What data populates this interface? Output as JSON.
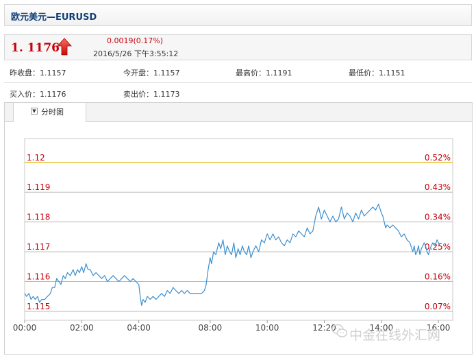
{
  "header": {
    "title": "欧元美元—EURUSD"
  },
  "quote": {
    "price": "1. 1176",
    "change": "0.0019(0.17%)",
    "datetime": "2016/5/26 下午3:55:12",
    "direction_icon": "up-arrow-icon",
    "up_color": "#c7000b"
  },
  "stats": {
    "prev_close": "昨收盘：1.1157",
    "open": "今开盘：1.1157",
    "high": "最高价：1.1191",
    "low": "最低价：1.1151",
    "bid": "买入价：1.1176",
    "ask": "卖出价：1.1173"
  },
  "tab": {
    "label": "分时图",
    "icon": "dropdown-icon"
  },
  "watermark": {
    "text": "中金在线外汇网",
    "icon": "wechat-icon"
  },
  "chart_data": {
    "type": "line",
    "y_tick_labels": [
      "1.12",
      "1.119",
      "1.118",
      "1.117",
      "1.116",
      "1.115"
    ],
    "y_ticks": [
      1.12,
      1.119,
      1.118,
      1.117,
      1.116,
      1.115
    ],
    "right_tick_labels": [
      "0.52%",
      "0.43%",
      "0.34%",
      "0.25%",
      "0.16%",
      "0.07%"
    ],
    "x_tick_labels": [
      "00:00",
      "02:00",
      "04:00",
      "08:00",
      "10:00",
      "12:20",
      "14:00",
      "16:00"
    ],
    "x_ticks_hours": [
      0,
      2,
      4,
      6.5,
      8.5,
      10.5,
      12.5,
      14.5
    ],
    "xlim": [
      0,
      15
    ],
    "ylim": [
      1.1147,
      1.1208
    ],
    "highlight_level": 1.12,
    "line_color": "#3a8fd0",
    "highlight_color": "#e5c53a",
    "label_color": "#c7000b",
    "points": [
      [
        0.0,
        1.1156
      ],
      [
        0.07,
        1.1155
      ],
      [
        0.15,
        1.1156
      ],
      [
        0.22,
        1.1154
      ],
      [
        0.3,
        1.1155
      ],
      [
        0.37,
        1.1154
      ],
      [
        0.45,
        1.1155
      ],
      [
        0.52,
        1.1153
      ],
      [
        0.6,
        1.1154
      ],
      [
        0.7,
        1.1154
      ],
      [
        0.8,
        1.1155
      ],
      [
        0.9,
        1.1156
      ],
      [
        0.97,
        1.1158
      ],
      [
        1.05,
        1.1158
      ],
      [
        1.12,
        1.1161
      ],
      [
        1.2,
        1.116
      ],
      [
        1.27,
        1.1159
      ],
      [
        1.35,
        1.1162
      ],
      [
        1.42,
        1.1161
      ],
      [
        1.5,
        1.1163
      ],
      [
        1.6,
        1.1162
      ],
      [
        1.7,
        1.1164
      ],
      [
        1.77,
        1.1162
      ],
      [
        1.85,
        1.1164
      ],
      [
        1.92,
        1.1163
      ],
      [
        2.0,
        1.1165
      ],
      [
        2.07,
        1.1163
      ],
      [
        2.15,
        1.1166
      ],
      [
        2.22,
        1.1164
      ],
      [
        2.3,
        1.1164
      ],
      [
        2.4,
        1.1162
      ],
      [
        2.5,
        1.1163
      ],
      [
        2.6,
        1.1162
      ],
      [
        2.7,
        1.1161
      ],
      [
        2.8,
        1.1162
      ],
      [
        2.9,
        1.116
      ],
      [
        3.0,
        1.1161
      ],
      [
        3.1,
        1.1162
      ],
      [
        3.2,
        1.1161
      ],
      [
        3.3,
        1.116
      ],
      [
        3.4,
        1.1161
      ],
      [
        3.5,
        1.1162
      ],
      [
        3.6,
        1.1161
      ],
      [
        3.7,
        1.116
      ],
      [
        3.8,
        1.1161
      ],
      [
        3.9,
        1.116
      ],
      [
        4.0,
        1.1159
      ],
      [
        4.05,
        1.1155
      ],
      [
        4.1,
        1.1152
      ],
      [
        4.15,
        1.1154
      ],
      [
        4.22,
        1.1153
      ],
      [
        4.3,
        1.1155
      ],
      [
        4.4,
        1.1154
      ],
      [
        4.5,
        1.1155
      ],
      [
        4.6,
        1.1154
      ],
      [
        4.7,
        1.1155
      ],
      [
        4.8,
        1.1156
      ],
      [
        4.9,
        1.1155
      ],
      [
        5.0,
        1.1157
      ],
      [
        5.1,
        1.1156
      ],
      [
        5.2,
        1.1158
      ],
      [
        5.3,
        1.1157
      ],
      [
        5.4,
        1.1156
      ],
      [
        5.5,
        1.1157
      ],
      [
        5.6,
        1.1156
      ],
      [
        5.7,
        1.1157
      ],
      [
        5.8,
        1.1156
      ],
      [
        5.9,
        1.1156
      ],
      [
        6.0,
        1.1156
      ],
      [
        6.1,
        1.1156
      ],
      [
        6.2,
        1.1156
      ],
      [
        6.3,
        1.1157
      ],
      [
        6.36,
        1.1159
      ],
      [
        6.43,
        1.1164
      ],
      [
        6.5,
        1.1168
      ],
      [
        6.55,
        1.1166
      ],
      [
        6.62,
        1.117
      ],
      [
        6.7,
        1.1169
      ],
      [
        6.8,
        1.1173
      ],
      [
        6.87,
        1.1171
      ],
      [
        6.95,
        1.1174
      ],
      [
        7.03,
        1.1169
      ],
      [
        7.1,
        1.1172
      ],
      [
        7.18,
        1.117
      ],
      [
        7.25,
        1.1169
      ],
      [
        7.33,
        1.1173
      ],
      [
        7.4,
        1.1168
      ],
      [
        7.48,
        1.1171
      ],
      [
        7.55,
        1.1169
      ],
      [
        7.63,
        1.1172
      ],
      [
        7.7,
        1.117
      ],
      [
        7.78,
        1.1169
      ],
      [
        7.85,
        1.1172
      ],
      [
        7.93,
        1.1168
      ],
      [
        8.0,
        1.117
      ],
      [
        8.1,
        1.1172
      ],
      [
        8.2,
        1.117
      ],
      [
        8.3,
        1.1174
      ],
      [
        8.4,
        1.1173
      ],
      [
        8.5,
        1.1176
      ],
      [
        8.6,
        1.1174
      ],
      [
        8.7,
        1.1176
      ],
      [
        8.8,
        1.1174
      ],
      [
        8.9,
        1.1175
      ],
      [
        9.0,
        1.1173
      ],
      [
        9.1,
        1.1172
      ],
      [
        9.2,
        1.1174
      ],
      [
        9.3,
        1.1173
      ],
      [
        9.4,
        1.1176
      ],
      [
        9.5,
        1.1175
      ],
      [
        9.6,
        1.1177
      ],
      [
        9.7,
        1.1176
      ],
      [
        9.8,
        1.1175
      ],
      [
        9.9,
        1.1178
      ],
      [
        10.0,
        1.1176
      ],
      [
        10.1,
        1.1177
      ],
      [
        10.2,
        1.1182
      ],
      [
        10.3,
        1.1185
      ],
      [
        10.4,
        1.1181
      ],
      [
        10.5,
        1.1184
      ],
      [
        10.6,
        1.1182
      ],
      [
        10.7,
        1.118
      ],
      [
        10.8,
        1.1182
      ],
      [
        10.9,
        1.118
      ],
      [
        11.0,
        1.1181
      ],
      [
        11.1,
        1.1185
      ],
      [
        11.2,
        1.1181
      ],
      [
        11.3,
        1.1183
      ],
      [
        11.4,
        1.1182
      ],
      [
        11.5,
        1.118
      ],
      [
        11.6,
        1.1183
      ],
      [
        11.7,
        1.1181
      ],
      [
        11.8,
        1.1184
      ],
      [
        11.9,
        1.1182
      ],
      [
        12.0,
        1.1183
      ],
      [
        12.1,
        1.1184
      ],
      [
        12.2,
        1.1185
      ],
      [
        12.3,
        1.1184
      ],
      [
        12.4,
        1.1186
      ],
      [
        12.5,
        1.1183
      ],
      [
        12.55,
        1.1182
      ],
      [
        12.6,
        1.118
      ],
      [
        12.65,
        1.1178
      ],
      [
        12.7,
        1.1179
      ],
      [
        12.8,
        1.1178
      ],
      [
        12.9,
        1.1179
      ],
      [
        13.0,
        1.1178
      ],
      [
        13.1,
        1.1177
      ],
      [
        13.2,
        1.1175
      ],
      [
        13.3,
        1.1176
      ],
      [
        13.4,
        1.1174
      ],
      [
        13.5,
        1.1173
      ],
      [
        13.6,
        1.117
      ],
      [
        13.65,
        1.1172
      ],
      [
        13.7,
        1.1169
      ],
      [
        13.75,
        1.117
      ],
      [
        13.8,
        1.1172
      ],
      [
        13.85,
        1.1169
      ],
      [
        13.9,
        1.1171
      ],
      [
        13.95,
        1.1172
      ],
      [
        14.0,
        1.1173
      ],
      [
        14.05,
        1.1172
      ],
      [
        14.1,
        1.117
      ],
      [
        14.15,
        1.1169
      ],
      [
        14.2,
        1.1171
      ],
      [
        14.25,
        1.1172
      ],
      [
        14.3,
        1.1173
      ],
      [
        14.38,
        1.1172
      ],
      [
        14.45,
        1.1174
      ],
      [
        14.5,
        1.1173
      ],
      [
        14.55,
        1.1172
      ]
    ]
  }
}
